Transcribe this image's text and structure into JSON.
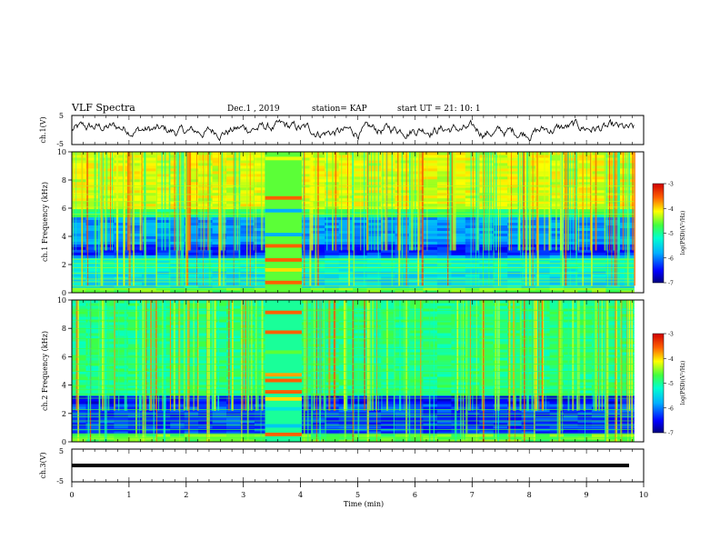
{
  "header": {
    "title": "VLF Spectra",
    "date": "Dec.1 , 2019",
    "station": "station= KAP",
    "start": "start UT = 21: 10: 1"
  },
  "chart_data": [
    {
      "type": "line",
      "name": "ch1-waveform",
      "ylabel": "ch.1(V)",
      "xlim": [
        0,
        10
      ],
      "ylim": [
        -5,
        5
      ],
      "yticks": [
        "5",
        "-5"
      ],
      "description_values": {
        "mean": 0,
        "amplitude_range": [
          -3,
          3
        ]
      }
    },
    {
      "type": "heatmap",
      "name": "ch1-spectrogram",
      "ylabel": "ch.1 Frequency (kHz)",
      "xlim": [
        0,
        10
      ],
      "ylim": [
        0,
        10
      ],
      "yticks": [
        "0",
        "2",
        "4",
        "6",
        "8",
        "10"
      ],
      "data_extent_min": [
        0,
        9.83
      ],
      "gap_band_min": [
        3.38,
        4.02
      ],
      "colorbar": {
        "label": "log(PSD)(V²/Hz)",
        "range": [
          -7,
          -3
        ],
        "ticks": [
          "-3",
          "-4",
          "-5",
          "-6",
          "-7"
        ]
      }
    },
    {
      "type": "heatmap",
      "name": "ch2-spectrogram",
      "ylabel": "ch.2 Frequency (kHz)",
      "xlim": [
        0,
        10
      ],
      "ylim": [
        0,
        10
      ],
      "yticks": [
        "0",
        "2",
        "4",
        "6",
        "8",
        "10"
      ],
      "data_extent_min": [
        0,
        9.83
      ],
      "gap_band_min": [
        3.38,
        4.02
      ],
      "colorbar": {
        "label": "log(PSD)(V²/Hz)",
        "range": [
          -7,
          -3
        ],
        "ticks": [
          "-3",
          "-4",
          "-5",
          "-6",
          "-7"
        ]
      }
    },
    {
      "type": "line",
      "name": "ch3-waveform",
      "ylabel": "ch.3(V)",
      "xlim": [
        0,
        10
      ],
      "ylim": [
        -5,
        5
      ],
      "yticks": [
        "5",
        "-5"
      ],
      "constant_value": 0
    }
  ],
  "xaxis": {
    "label": "Time (min)",
    "ticks": [
      "0",
      "1",
      "2",
      "3",
      "4",
      "5",
      "6",
      "7",
      "8",
      "9",
      "10"
    ]
  }
}
